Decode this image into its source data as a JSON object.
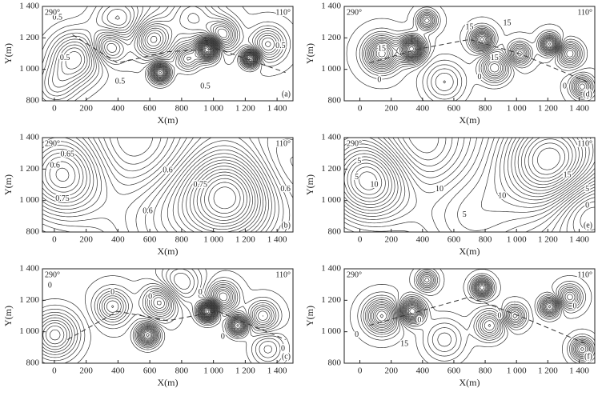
{
  "chart_data": [
    {
      "type": "contour",
      "panel_label": "(a)",
      "azimuth_left": "290°",
      "azimuth_right": "110°",
      "xlabel": "X(m)",
      "ylabel": "Y(m)",
      "xlim": [
        -75,
        1500
      ],
      "ylim": [
        800,
        1400
      ],
      "xticks": [
        0,
        200,
        400,
        600,
        800,
        {
          "value": 1000,
          "label": "1 000"
        },
        {
          "value": 1200,
          "label": "1 200"
        },
        {
          "value": 1400,
          "label": "1 400"
        }
      ],
      "yticks": [
        800,
        {
          "value": 1000,
          "label": "1 000"
        },
        {
          "value": 1200,
          "label": "1 200"
        },
        {
          "value": 1400,
          "label": "1 400"
        }
      ],
      "contour_labels": [
        0.5,
        0.5,
        0.5,
        0.5,
        0.5
      ]
    },
    {
      "type": "contour",
      "panel_label": "(d)",
      "azimuth_left": "290°",
      "azimuth_right": "110°",
      "xlabel": "X(m)",
      "ylabel": "Y(m)",
      "xlim": [
        -100,
        1500
      ],
      "ylim": [
        800,
        1400
      ],
      "xticks": [
        0,
        200,
        400,
        600,
        800,
        {
          "value": 1000,
          "label": "1 000"
        },
        {
          "value": 1200,
          "label": "1 200"
        },
        {
          "value": 1400,
          "label": "1 400"
        }
      ],
      "yticks": [
        800,
        {
          "value": 1000,
          "label": "1 000"
        },
        {
          "value": 1200,
          "label": "1 200"
        },
        {
          "value": 1400,
          "label": "1 400"
        }
      ],
      "contour_labels": [
        15,
        0,
        15,
        15,
        0,
        15,
        0
      ]
    },
    {
      "type": "contour",
      "panel_label": "(b)",
      "azimuth_left": "290°",
      "azimuth_right": "110°",
      "xlabel": "X(m)",
      "ylabel": "Y(m)",
      "xlim": [
        -75,
        1500
      ],
      "ylim": [
        800,
        1400
      ],
      "xticks": [
        0,
        200,
        400,
        600,
        800,
        {
          "value": 1000,
          "label": "1 000"
        },
        {
          "value": 1200,
          "label": "1 200"
        },
        {
          "value": 1400,
          "label": "1 400"
        }
      ],
      "yticks": [
        800,
        {
          "value": 1000,
          "label": "1 000"
        },
        {
          "value": 1200,
          "label": "1 200"
        },
        {
          "value": 1400,
          "label": "1 400"
        }
      ],
      "contour_labels": [
        0.65,
        0.6,
        0.75,
        0.6,
        0.75,
        0.6,
        0.6
      ]
    },
    {
      "type": "contour",
      "panel_label": "(e)",
      "azimuth_left": "290°",
      "azimuth_right": "110°",
      "xlabel": "X(m)",
      "ylabel": "Y(m)",
      "xlim": [
        -100,
        1500
      ],
      "ylim": [
        800,
        1400
      ],
      "xticks": [
        0,
        200,
        400,
        600,
        800,
        {
          "value": 1000,
          "label": "1 000"
        },
        {
          "value": 1200,
          "label": "1 200"
        },
        {
          "value": 1400,
          "label": "1 400"
        }
      ],
      "yticks": [
        800,
        {
          "value": 1000,
          "label": "1 000"
        },
        {
          "value": 1200,
          "label": "1 200"
        },
        {
          "value": 1400,
          "label": "1 400"
        }
      ],
      "contour_labels": [
        5,
        10,
        5,
        10,
        10,
        5,
        15,
        5,
        0
      ]
    },
    {
      "type": "contour",
      "panel_label": "(c)",
      "azimuth_left": "290°",
      "azimuth_right": "110°",
      "xlabel": "X(m)",
      "ylabel": "Y(m)",
      "xlim": [
        -75,
        1500
      ],
      "ylim": [
        800,
        1400
      ],
      "xticks": [
        0,
        200,
        400,
        600,
        800,
        {
          "value": 1000,
          "label": "1 000"
        },
        {
          "value": 1200,
          "label": "1 200"
        },
        {
          "value": 1400,
          "label": "1 400"
        }
      ],
      "yticks": [
        800,
        {
          "value": 1000,
          "label": "1 000"
        },
        {
          "value": 1200,
          "label": "1 200"
        },
        {
          "value": 1400,
          "label": "1 400"
        }
      ],
      "contour_labels": [
        0,
        0,
        0,
        0,
        0,
        0
      ]
    },
    {
      "type": "contour",
      "panel_label": "(f)",
      "azimuth_left": "290°",
      "azimuth_right": "110°",
      "xlabel": "X(m)",
      "ylabel": "Y(m)",
      "xlim": [
        -100,
        1500
      ],
      "ylim": [
        800,
        1400
      ],
      "xticks": [
        0,
        200,
        400,
        600,
        800,
        {
          "value": 1000,
          "label": "1 000"
        },
        {
          "value": 1200,
          "label": "1 200"
        },
        {
          "value": 1400,
          "label": "1 400"
        }
      ],
      "yticks": [
        800,
        {
          "value": 1000,
          "label": "1 000"
        },
        {
          "value": 1200,
          "label": "1 200"
        },
        {
          "value": 1400,
          "label": "1 400"
        }
      ],
      "contour_labels": [
        0,
        0,
        15,
        0,
        0
      ]
    }
  ]
}
